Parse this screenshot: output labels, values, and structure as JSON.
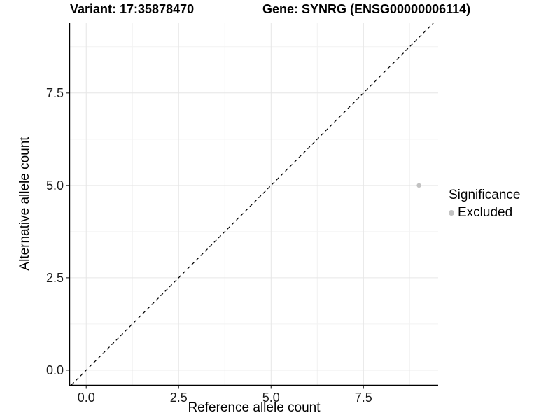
{
  "colors": {
    "background": "#ffffff",
    "point": "#c2c2c2",
    "grid_major": "#e6e6e6",
    "grid_minor": "#f2f2f2",
    "axis_line": "#000000",
    "tick_mark": "#333333",
    "tick_text": "#1a1a1a",
    "text": "#000000"
  },
  "chart_data": {
    "type": "scatter",
    "title_left": "Variant: 17:35878470",
    "title_right": "Gene: SYNRG (ENSG00000006114)",
    "xlabel": "Reference allele count",
    "ylabel": "Alternative allele count",
    "xlim": [
      -0.44,
      9.52
    ],
    "ylim": [
      -0.4,
      9.39
    ],
    "x_major_ticks": [
      0,
      2.5,
      5,
      7.5
    ],
    "x_minor_ticks": [
      1.25,
      3.75,
      6.25,
      8.75
    ],
    "y_major_ticks": [
      0,
      2.5,
      5,
      7.5
    ],
    "y_minor_ticks": [
      1.25,
      3.75,
      6.25,
      8.75
    ],
    "grid": "major+minor",
    "reference_line": {
      "slope": 1,
      "intercept": 0,
      "style": "dashed",
      "color": "#000000"
    },
    "series": [
      {
        "name": "Excluded",
        "color": "#c2c2c2",
        "points": [
          [
            9,
            5
          ]
        ]
      }
    ],
    "legend": {
      "title": "Significance",
      "position": "right",
      "items": [
        {
          "label": "Excluded",
          "color": "#c2c2c2",
          "marker": "circle"
        }
      ]
    }
  }
}
